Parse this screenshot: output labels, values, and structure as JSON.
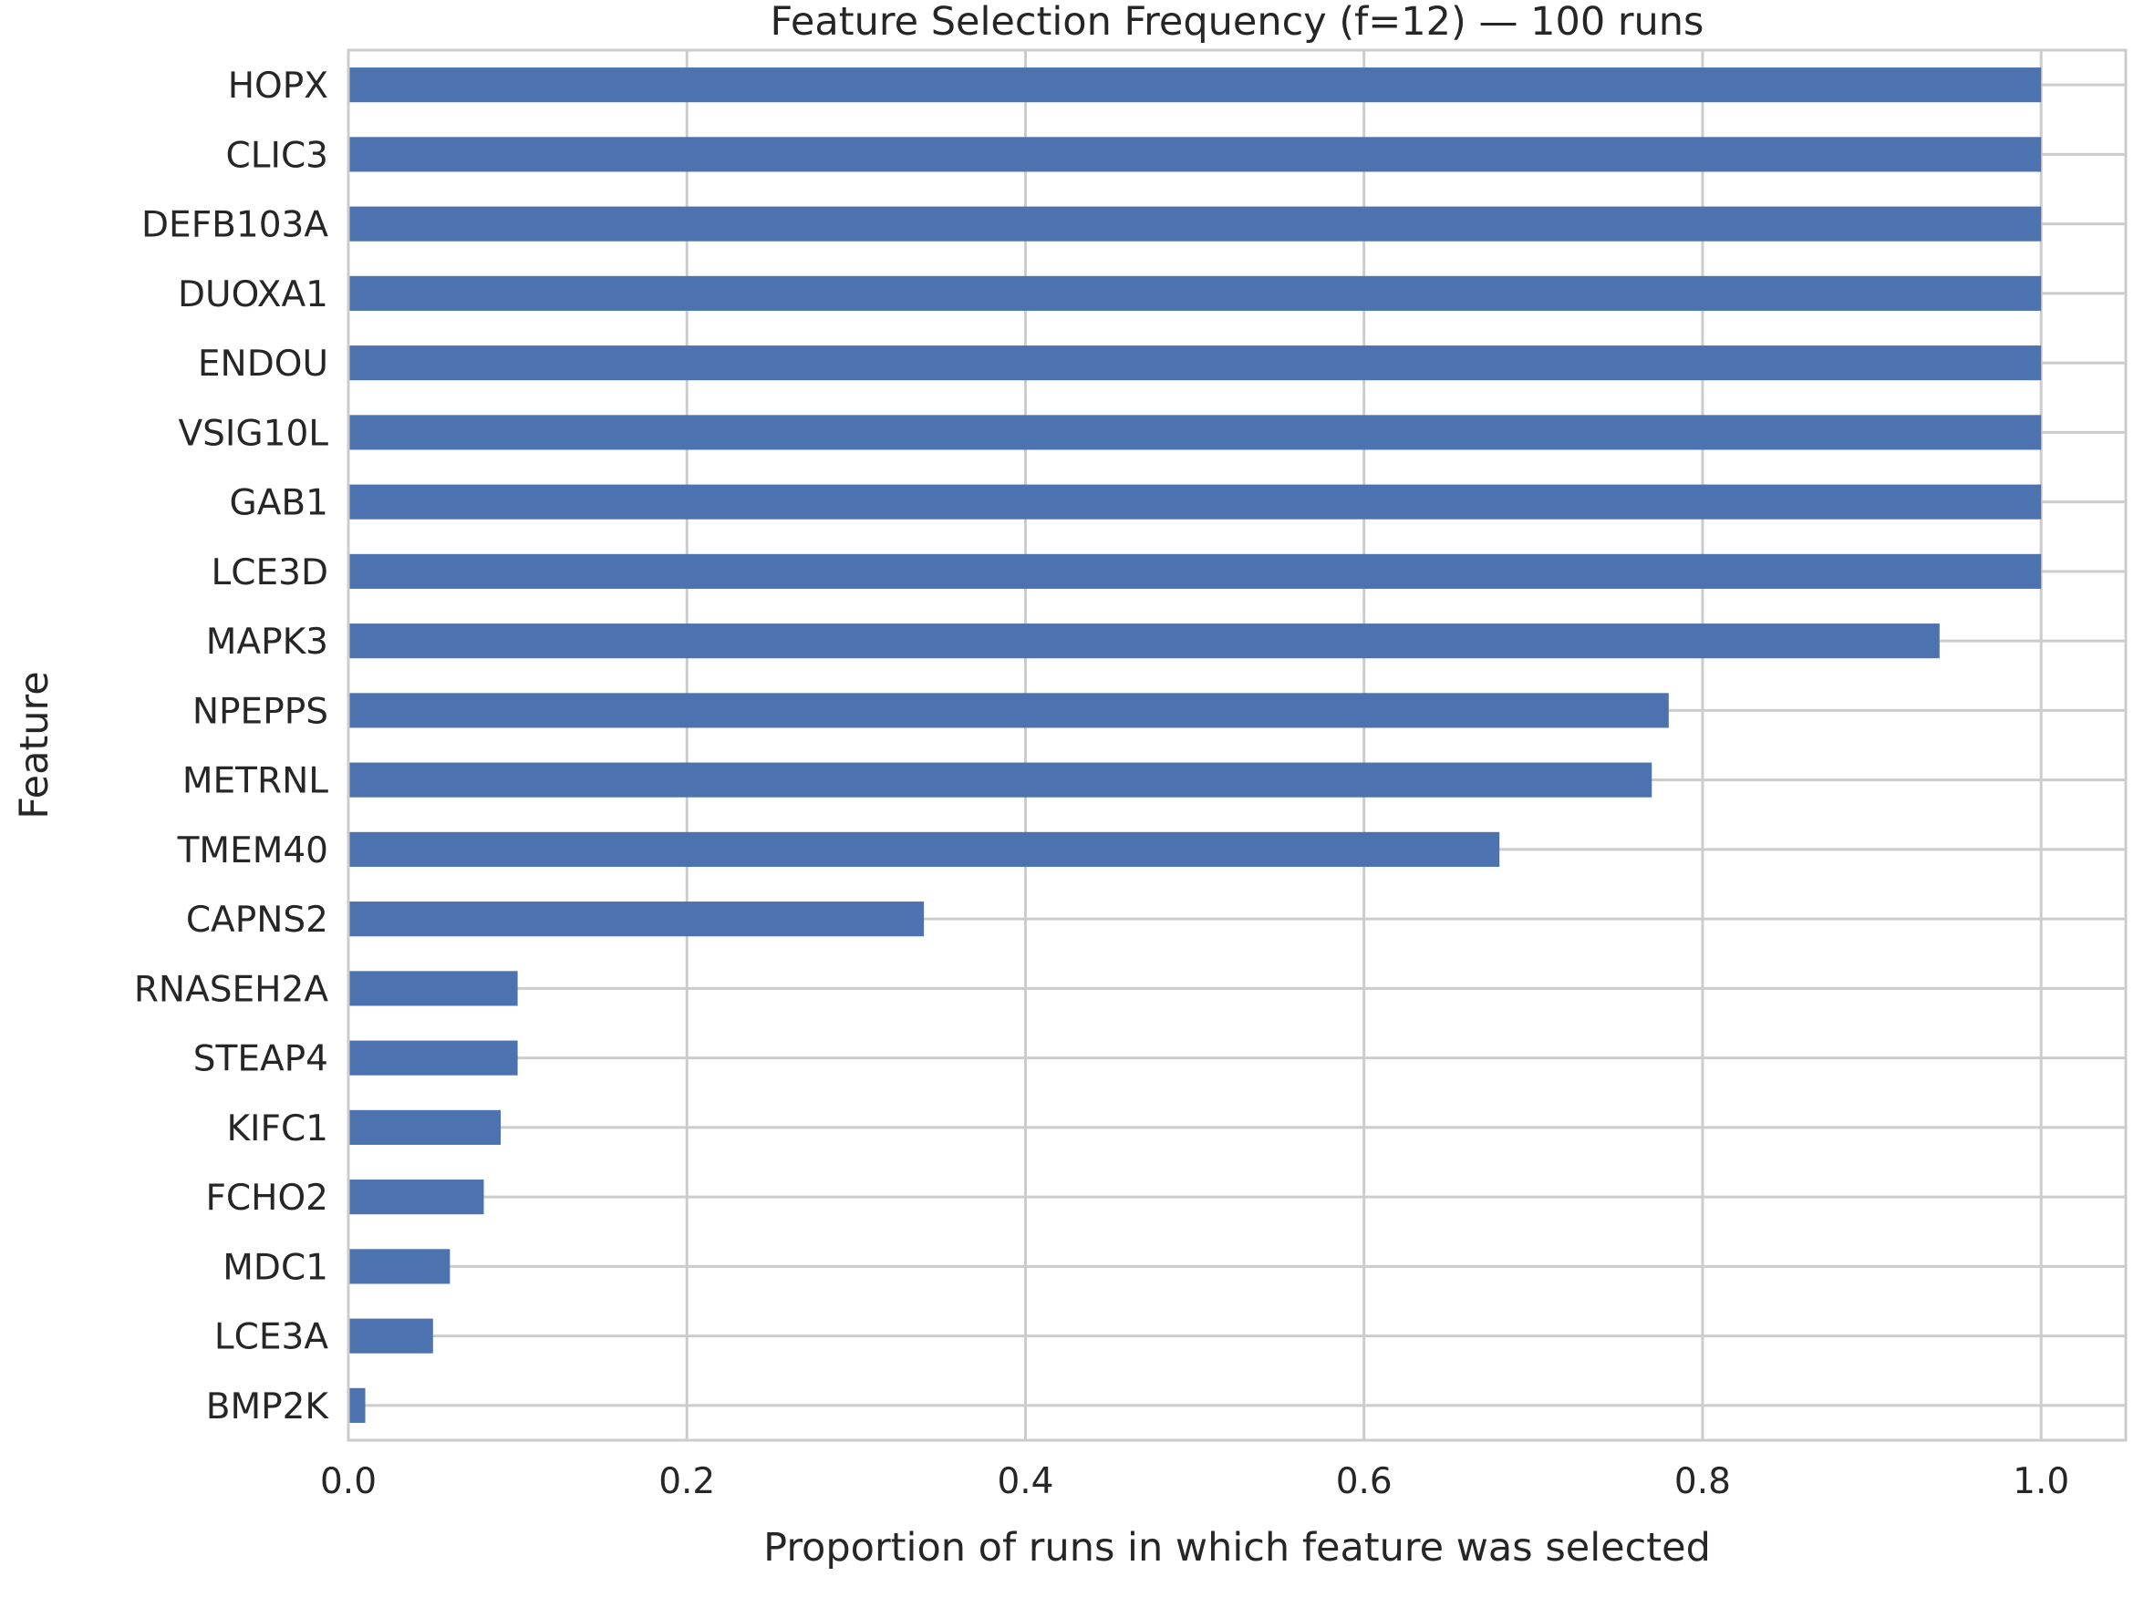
{
  "chart_data": {
    "type": "bar",
    "orientation": "horizontal",
    "title": "Feature Selection Frequency (f=12) — 100 runs",
    "xlabel": "Proportion of runs in which feature was selected",
    "ylabel": "Feature",
    "xlim": [
      0,
      1.05
    ],
    "xticks": [
      "0.0",
      "0.2",
      "0.4",
      "0.6",
      "0.8",
      "1.0"
    ],
    "grid": true,
    "bar_color": "#4c72b0",
    "categories": [
      "HOPX",
      "CLIC3",
      "DEFB103A",
      "DUOXA1",
      "ENDOU",
      "VSIG10L",
      "GAB1",
      "LCE3D",
      "MAPK3",
      "NPEPPS",
      "METRNL",
      "TMEM40",
      "CAPNS2",
      "RNASEH2A",
      "STEAP4",
      "KIFC1",
      "FCHO2",
      "MDC1",
      "LCE3A",
      "BMP2K"
    ],
    "values": [
      1.0,
      1.0,
      1.0,
      1.0,
      1.0,
      1.0,
      1.0,
      1.0,
      0.94,
      0.78,
      0.77,
      0.68,
      0.34,
      0.1,
      0.1,
      0.09,
      0.08,
      0.06,
      0.05,
      0.01
    ]
  }
}
